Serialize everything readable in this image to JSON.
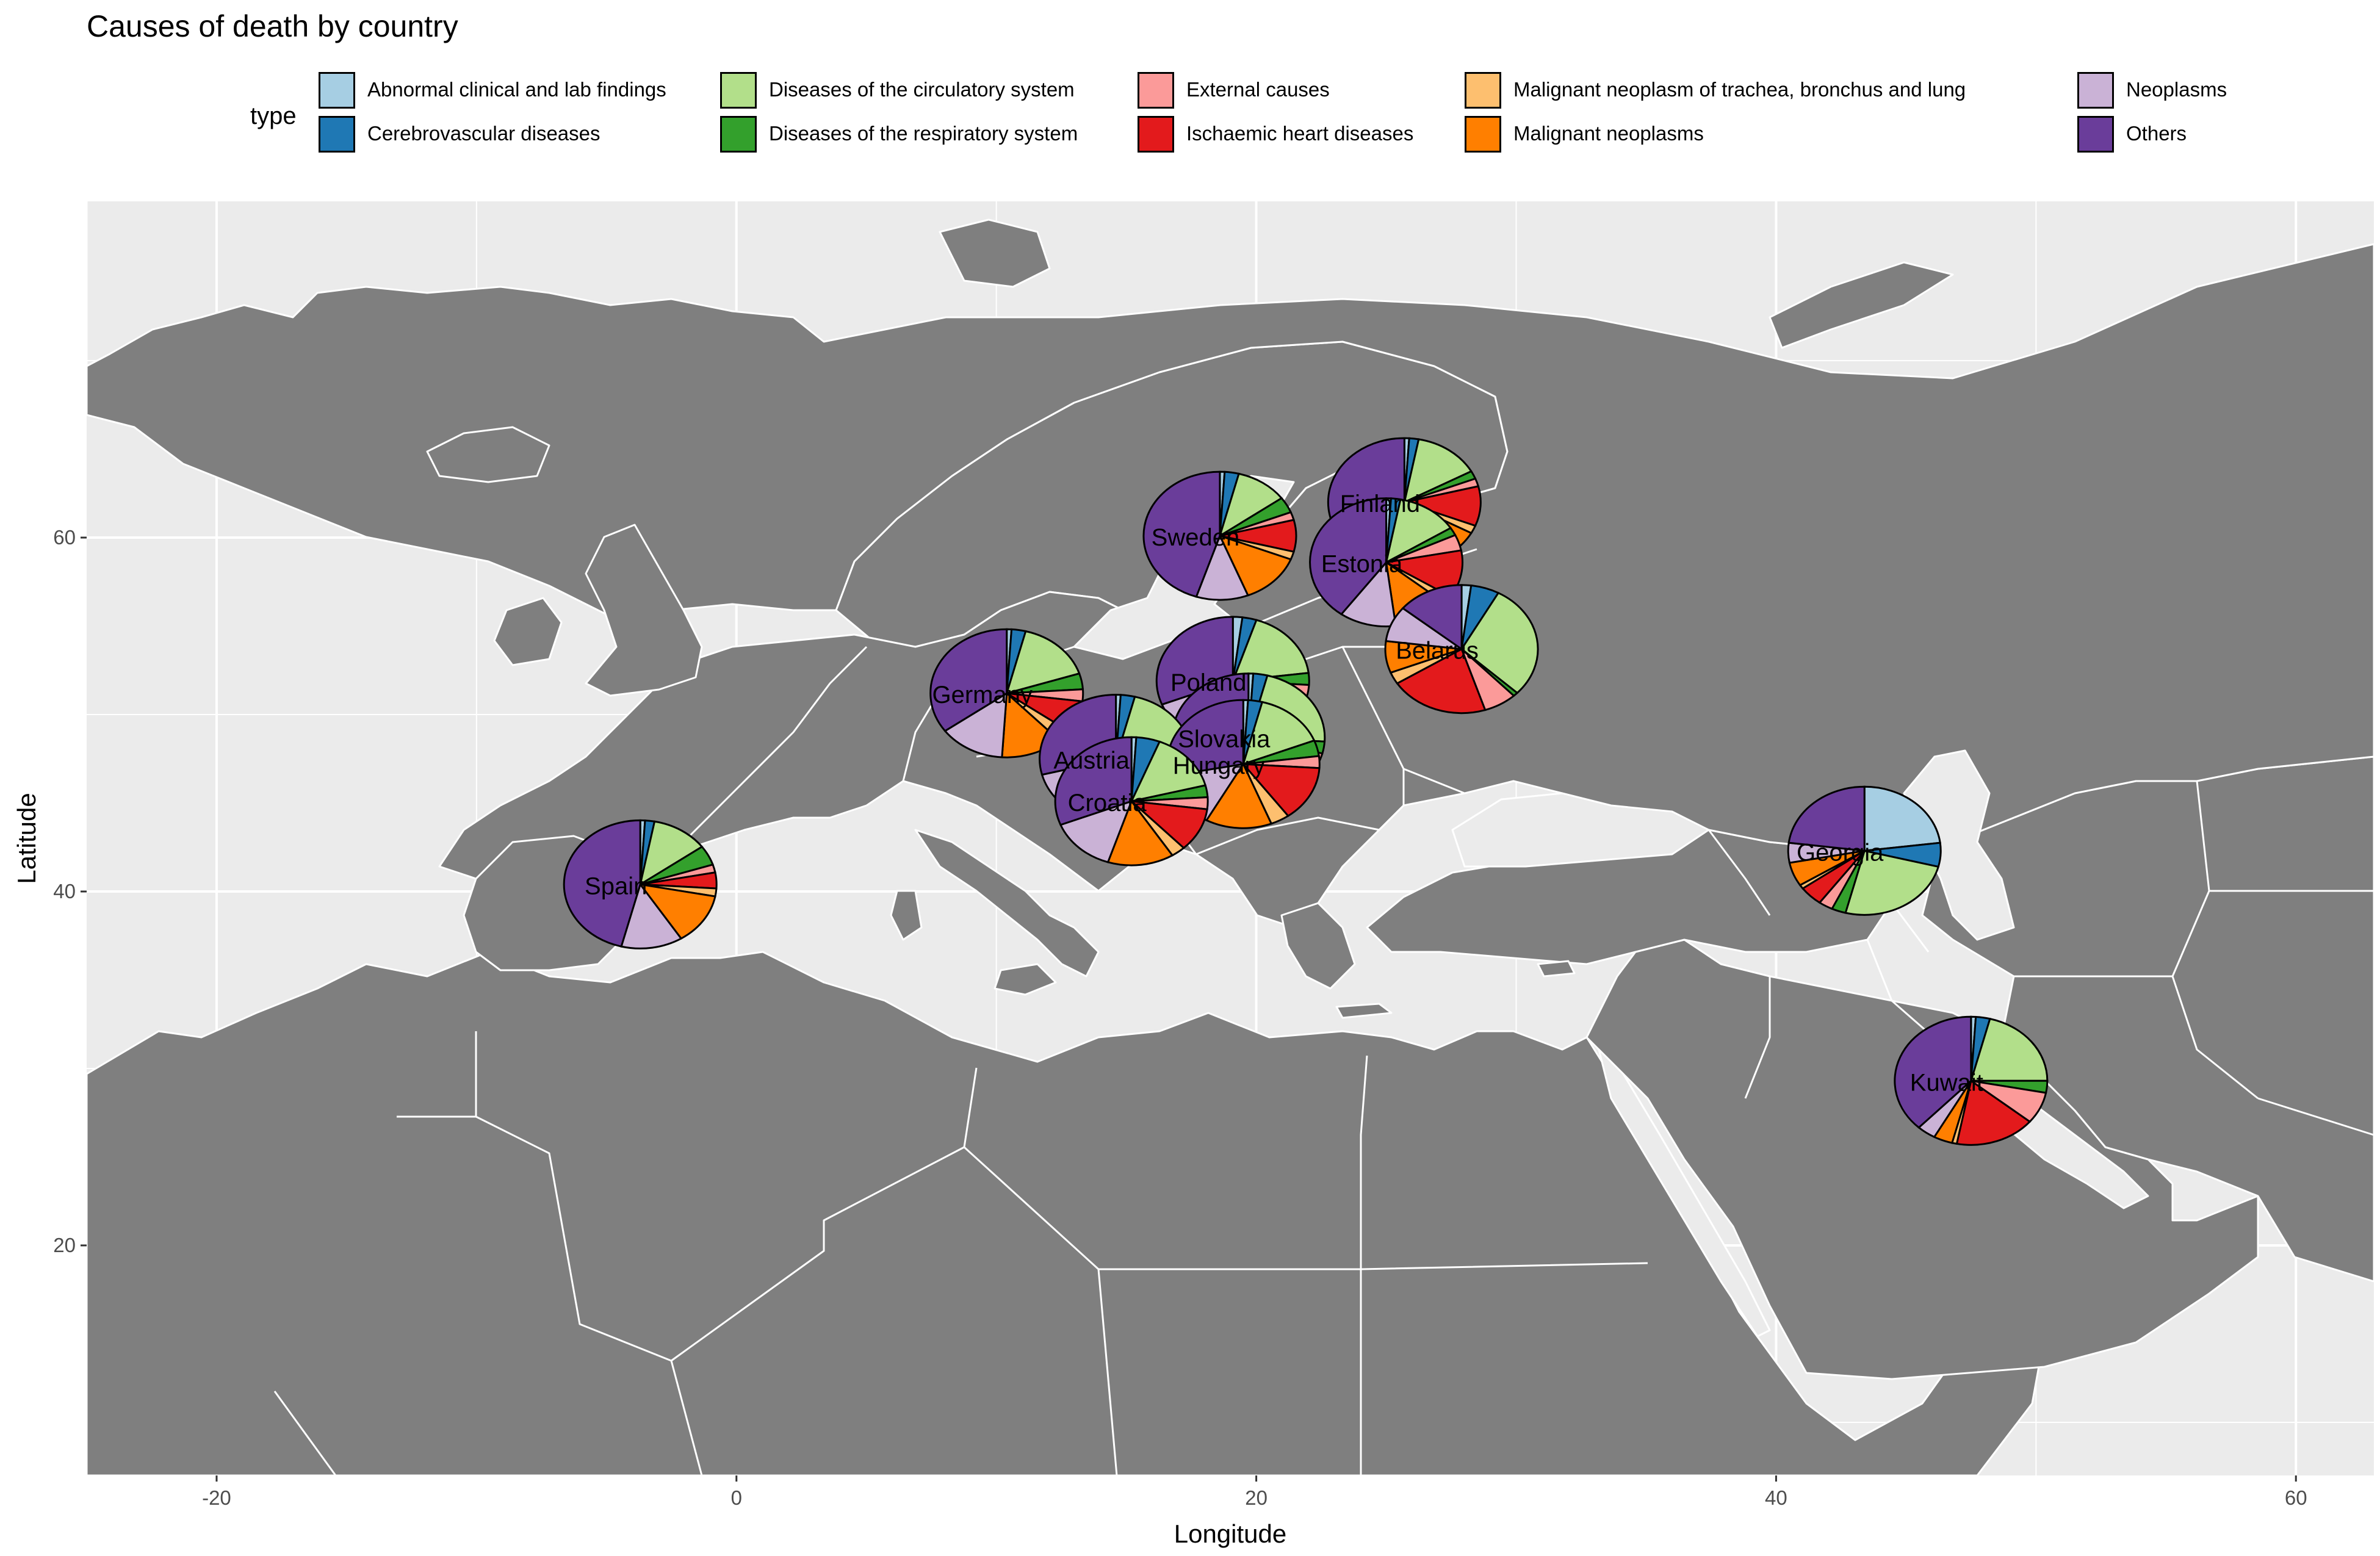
{
  "chart_data": {
    "type": "pie",
    "title": "Causes of death by country",
    "xlabel": "Longitude",
    "ylabel": "Latitude",
    "xlim": [
      -25,
      63
    ],
    "ylim": [
      7,
      79
    ],
    "x_ticks": [
      -20,
      0,
      20,
      40,
      60
    ],
    "y_ticks": [
      20,
      40,
      60
    ],
    "grid": true,
    "legend_position": "top",
    "legend_title": "type",
    "categories": [
      "Abnormal clinical and lab findings",
      "Cerebrovascular diseases",
      "Diseases of the circulatory system",
      "Diseases of the respiratory  system",
      "External causes",
      "Ischaemic heart diseases",
      "Malignant neoplasm of trachea, bronchus and lung",
      "Malignant neoplasms",
      "Neoplasms",
      "Others"
    ],
    "colors": [
      "#a6cee3",
      "#1f78b4",
      "#b2df8a",
      "#33a02c",
      "#fb9a99",
      "#e31a1c",
      "#fdbf6f",
      "#ff7f00",
      "#cab2d6",
      "#6a3d9a"
    ],
    "series": [
      {
        "name": "Spain",
        "lon": -3.7,
        "lat": 40.4,
        "values": [
          1,
          2,
          12,
          5,
          2,
          4,
          2,
          13,
          13,
          46
        ]
      },
      {
        "name": "Sweden",
        "lon": 18.6,
        "lat": 60.1,
        "values": [
          1,
          3,
          11,
          4,
          2,
          8,
          2,
          13,
          11,
          45
        ]
      },
      {
        "name": "Finland",
        "lon": 25.7,
        "lat": 62.0,
        "values": [
          1,
          2,
          14,
          2,
          2,
          10,
          2,
          12,
          12,
          43
        ]
      },
      {
        "name": "Estonia",
        "lon": 25.0,
        "lat": 58.6,
        "values": [
          1,
          2,
          13,
          2,
          4,
          12,
          2,
          12,
          12,
          40
        ]
      },
      {
        "name": "Belarus",
        "lon": 27.9,
        "lat": 53.7,
        "values": [
          2,
          6,
          29,
          1,
          7,
          21,
          3,
          8,
          9,
          14
        ]
      },
      {
        "name": "Poland",
        "lon": 19.1,
        "lat": 51.9,
        "values": [
          2,
          3,
          18,
          3,
          3,
          10,
          3,
          13,
          14,
          31
        ]
      },
      {
        "name": "Germany",
        "lon": 10.4,
        "lat": 51.2,
        "values": [
          1,
          3,
          16,
          4,
          3,
          8,
          3,
          13,
          14,
          35
        ]
      },
      {
        "name": "Slovakia",
        "lon": 19.7,
        "lat": 48.7,
        "values": [
          1,
          3,
          22,
          3,
          3,
          14,
          2,
          13,
          14,
          25
        ]
      },
      {
        "name": "Austria",
        "lon": 14.6,
        "lat": 47.5,
        "values": [
          1,
          3,
          19,
          4,
          3,
          12,
          2,
          13,
          14,
          29
        ]
      },
      {
        "name": "Hungary",
        "lon": 19.5,
        "lat": 47.2,
        "values": [
          1,
          3,
          15,
          4,
          3,
          14,
          4,
          14,
          14,
          28
        ]
      },
      {
        "name": "Croatia",
        "lon": 15.2,
        "lat": 45.1,
        "values": [
          1,
          5,
          15,
          3,
          3,
          11,
          3,
          14,
          14,
          31
        ]
      },
      {
        "name": "Georgia",
        "lon": 43.4,
        "lat": 42.3,
        "values": [
          23,
          6,
          25,
          3,
          3,
          5,
          1,
          6,
          5,
          23
        ]
      },
      {
        "name": "Kuwait",
        "lon": 47.5,
        "lat": 29.3,
        "values": [
          1,
          3,
          21,
          3,
          8,
          17,
          1,
          4,
          4,
          38
        ]
      }
    ]
  }
}
